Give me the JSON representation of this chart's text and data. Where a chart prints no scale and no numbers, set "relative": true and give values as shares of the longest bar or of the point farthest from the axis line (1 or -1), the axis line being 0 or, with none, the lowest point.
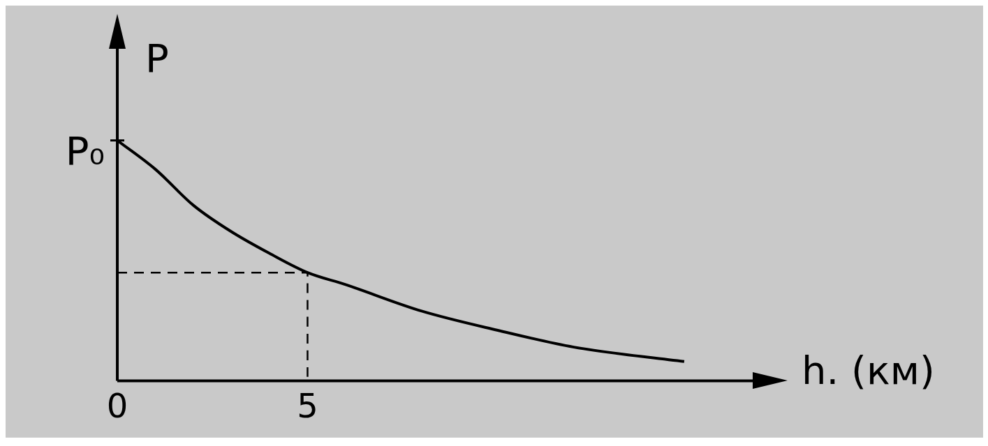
{
  "chart_data": {
    "type": "line",
    "relative": true,
    "xlabel": "h. (км)",
    "ylabel": "P",
    "xlim": [
      0,
      16.7
    ],
    "xticks": [
      0,
      5
    ],
    "grid": false,
    "legend": false,
    "marker": "none",
    "annotations": [
      {
        "text": "P₀",
        "x": 0,
        "y": 1
      }
    ],
    "series": [
      {
        "color": "#000000",
        "x": [
          0,
          1,
          2,
          3,
          4,
          5,
          6,
          8,
          10,
          12,
          14.9
        ],
        "values": [
          1,
          0.88,
          0.73,
          0.62,
          0.53,
          0.45,
          0.4,
          0.29,
          0.21,
          0.14,
          0.08
        ]
      },
      {
        "type": "line",
        "line_style": "dashed",
        "color": "#000000",
        "x": [
          0,
          5,
          5
        ],
        "values": [
          0.45,
          0.45,
          0
        ]
      }
    ]
  }
}
